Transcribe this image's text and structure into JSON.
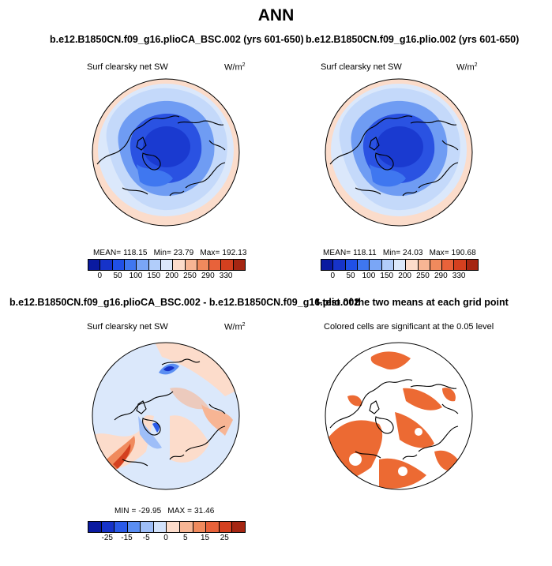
{
  "title": "ANN",
  "panels": {
    "top_left": {
      "case": "b.e12.B1850CN.f09_g16.plioCA_BSC.002 (yrs 601-650)",
      "field": "Surf clearsky net SW",
      "units": "W/m",
      "units_exp": "2",
      "mean": "MEAN= 118.15",
      "min": "Min= 23.79",
      "max": "Max= 192.13"
    },
    "top_right": {
      "case": "b.e12.B1850CN.f09_g16.plio.002 (yrs 601-650)",
      "field": "Surf clearsky net SW",
      "units": "W/m",
      "units_exp": "2",
      "mean": "MEAN= 118.11",
      "min": "Min= 24.03",
      "max": "Max= 190.68"
    },
    "bottom_left": {
      "case": "b.e12.B1850CN.f09_g16.plioCA_BSC.002 - b.e12.B1850CN.f09_g16.plio.002",
      "field": "Surf clearsky net SW",
      "units": "W/m",
      "units_exp": "2",
      "min": "MIN = -29.95",
      "max": "MAX = 31.46"
    },
    "bottom_right": {
      "case": "t-test of the two means at each grid point",
      "note": "Colored cells are significant at the 0.05 level"
    }
  },
  "colorbars": {
    "abs": {
      "colors": [
        "#0a1aa0",
        "#1633c9",
        "#2050e6",
        "#3f77f0",
        "#7aa6f6",
        "#b1cdfa",
        "#dbe8fb",
        "#fcdccb",
        "#f7b594",
        "#f08a5d",
        "#e8623a",
        "#d4401f",
        "#a52612"
      ],
      "labels": [
        "0",
        "50",
        "100",
        "150",
        "200",
        "250",
        "290",
        "330"
      ]
    },
    "diff": {
      "colors": [
        "#0a1aa0",
        "#1633c9",
        "#2a5ae8",
        "#5b8ef2",
        "#9ebef8",
        "#d2e2fb",
        "#fcdccb",
        "#f7b594",
        "#f08a5d",
        "#e8623a",
        "#d4401f",
        "#a52612"
      ],
      "labels": [
        "-25",
        "-15",
        "-5",
        "0",
        "5",
        "15",
        "25"
      ]
    }
  },
  "colors": {
    "ocean_outer": "#fbdccb",
    "light_blue": "#c4d9fa",
    "mid_blue": "#6f9cf3",
    "deep_blue": "#2a52e2",
    "core_blue": "#1a3ad0",
    "significant": "#ec6a33"
  }
}
